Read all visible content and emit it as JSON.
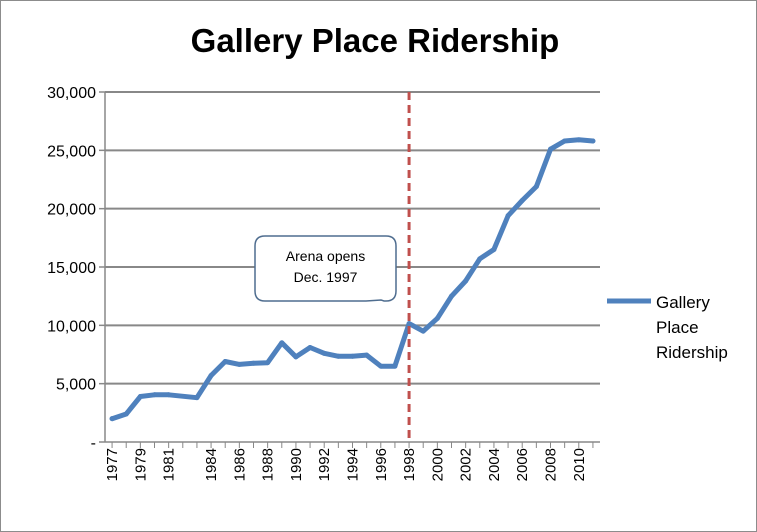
{
  "chart_data": {
    "type": "line",
    "title": "Gallery Place Ridership",
    "xlabel": "",
    "ylabel": "",
    "ylim": [
      0,
      30000
    ],
    "yticks": [
      {
        "value": 0,
        "label": "-"
      },
      {
        "value": 5000,
        "label": "5,000"
      },
      {
        "value": 10000,
        "label": "10,000"
      },
      {
        "value": 15000,
        "label": "15,000"
      },
      {
        "value": 20000,
        "label": "20,000"
      },
      {
        "value": 25000,
        "label": "25,000"
      },
      {
        "value": 30000,
        "label": "30,000"
      }
    ],
    "xtick_labels": [
      "1977",
      "1979",
      "1981",
      "1984",
      "1986",
      "1988",
      "1990",
      "1992",
      "1994",
      "1996",
      "1998",
      "2000",
      "2002",
      "2004",
      "2006",
      "2008",
      "2010"
    ],
    "x": [
      "1977",
      "1978",
      "1979",
      "1980",
      "1981",
      "1983",
      "1984",
      "1985",
      "1986",
      "1987",
      "1988",
      "1989",
      "1990",
      "1991",
      "1992",
      "1993",
      "1994",
      "1995",
      "1996",
      "1997",
      "1998",
      "1999",
      "2000",
      "2001",
      "2002",
      "2003",
      "2004",
      "2005",
      "2006",
      "2007",
      "2008",
      "2009",
      "2010",
      "2011"
    ],
    "series": [
      {
        "name": "Gallery Place Ridership",
        "color": "#4f81bd",
        "values": [
          2000,
          2400,
          3900,
          4050,
          4050,
          3800,
          5700,
          6900,
          6650,
          6750,
          6800,
          8500,
          7300,
          8100,
          7600,
          7350,
          7350,
          7450,
          6500,
          6500,
          10150,
          9500,
          10600,
          12500,
          13800,
          15700,
          16500,
          19400,
          20700,
          21900,
          25100,
          25800,
          25900,
          25800
        ]
      }
    ],
    "legend": {
      "position": "right",
      "entries": [
        "Gallery Place Ridership"
      ],
      "lines": [
        "Gallery",
        "Place",
        "Ridership"
      ]
    },
    "grid": true,
    "annotations": [
      {
        "type": "vertical-line",
        "x": "1998",
        "color": "#c0504d",
        "style": "dashed"
      },
      {
        "type": "callout",
        "x": "1998",
        "lines": [
          "Arena opens",
          "Dec. 1997"
        ]
      }
    ]
  }
}
